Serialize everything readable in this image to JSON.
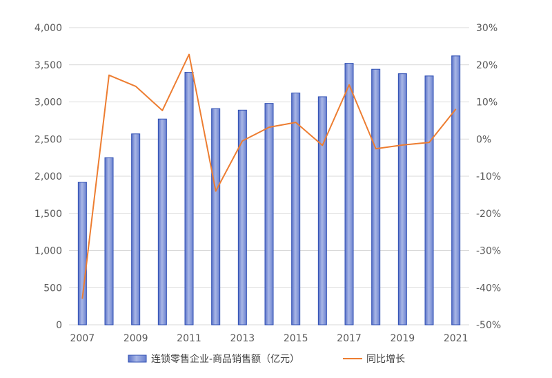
{
  "chart_data": {
    "type": "bar",
    "x": [
      "2007",
      "2008",
      "2009",
      "2010",
      "2011",
      "2012",
      "2013",
      "2014",
      "2015",
      "2016",
      "2017",
      "2018",
      "2019",
      "2020",
      "2021"
    ],
    "x_tick_labels": [
      "2007",
      "2009",
      "2011",
      "2013",
      "2015",
      "2017",
      "2019",
      "2021"
    ],
    "series": [
      {
        "name": "连锁零售企业-商品销售额（亿元）",
        "type": "bar",
        "axis": "left",
        "color": "#7f94d6",
        "values": [
          1920,
          2250,
          2570,
          2770,
          3400,
          2910,
          2890,
          2980,
          3120,
          3070,
          3520,
          3440,
          3380,
          3350,
          3620
        ]
      },
      {
        "name": "同比增长",
        "type": "line",
        "axis": "right",
        "color": "#ed7d31",
        "values": [
          -43.0,
          17.2,
          14.2,
          7.7,
          22.8,
          -14.0,
          -0.5,
          3.2,
          4.5,
          -1.7,
          14.6,
          -2.6,
          -1.6,
          -0.9,
          8.1
        ]
      }
    ],
    "y_left": {
      "range": [
        0,
        4000
      ],
      "ticks": [
        "0",
        "500",
        "1,000",
        "1,500",
        "2,000",
        "2,500",
        "3,000",
        "3,500",
        "4,000"
      ]
    },
    "y_right": {
      "range": [
        -50,
        30
      ],
      "ticks": [
        "-50%",
        "-40%",
        "-30%",
        "-20%",
        "-10%",
        "0%",
        "10%",
        "20%",
        "30%"
      ]
    },
    "grid": true,
    "legend_position": "bottom"
  },
  "legend": {
    "bar_label": "连锁零售企业-商品销售额（亿元）",
    "line_label": "同比增长"
  }
}
